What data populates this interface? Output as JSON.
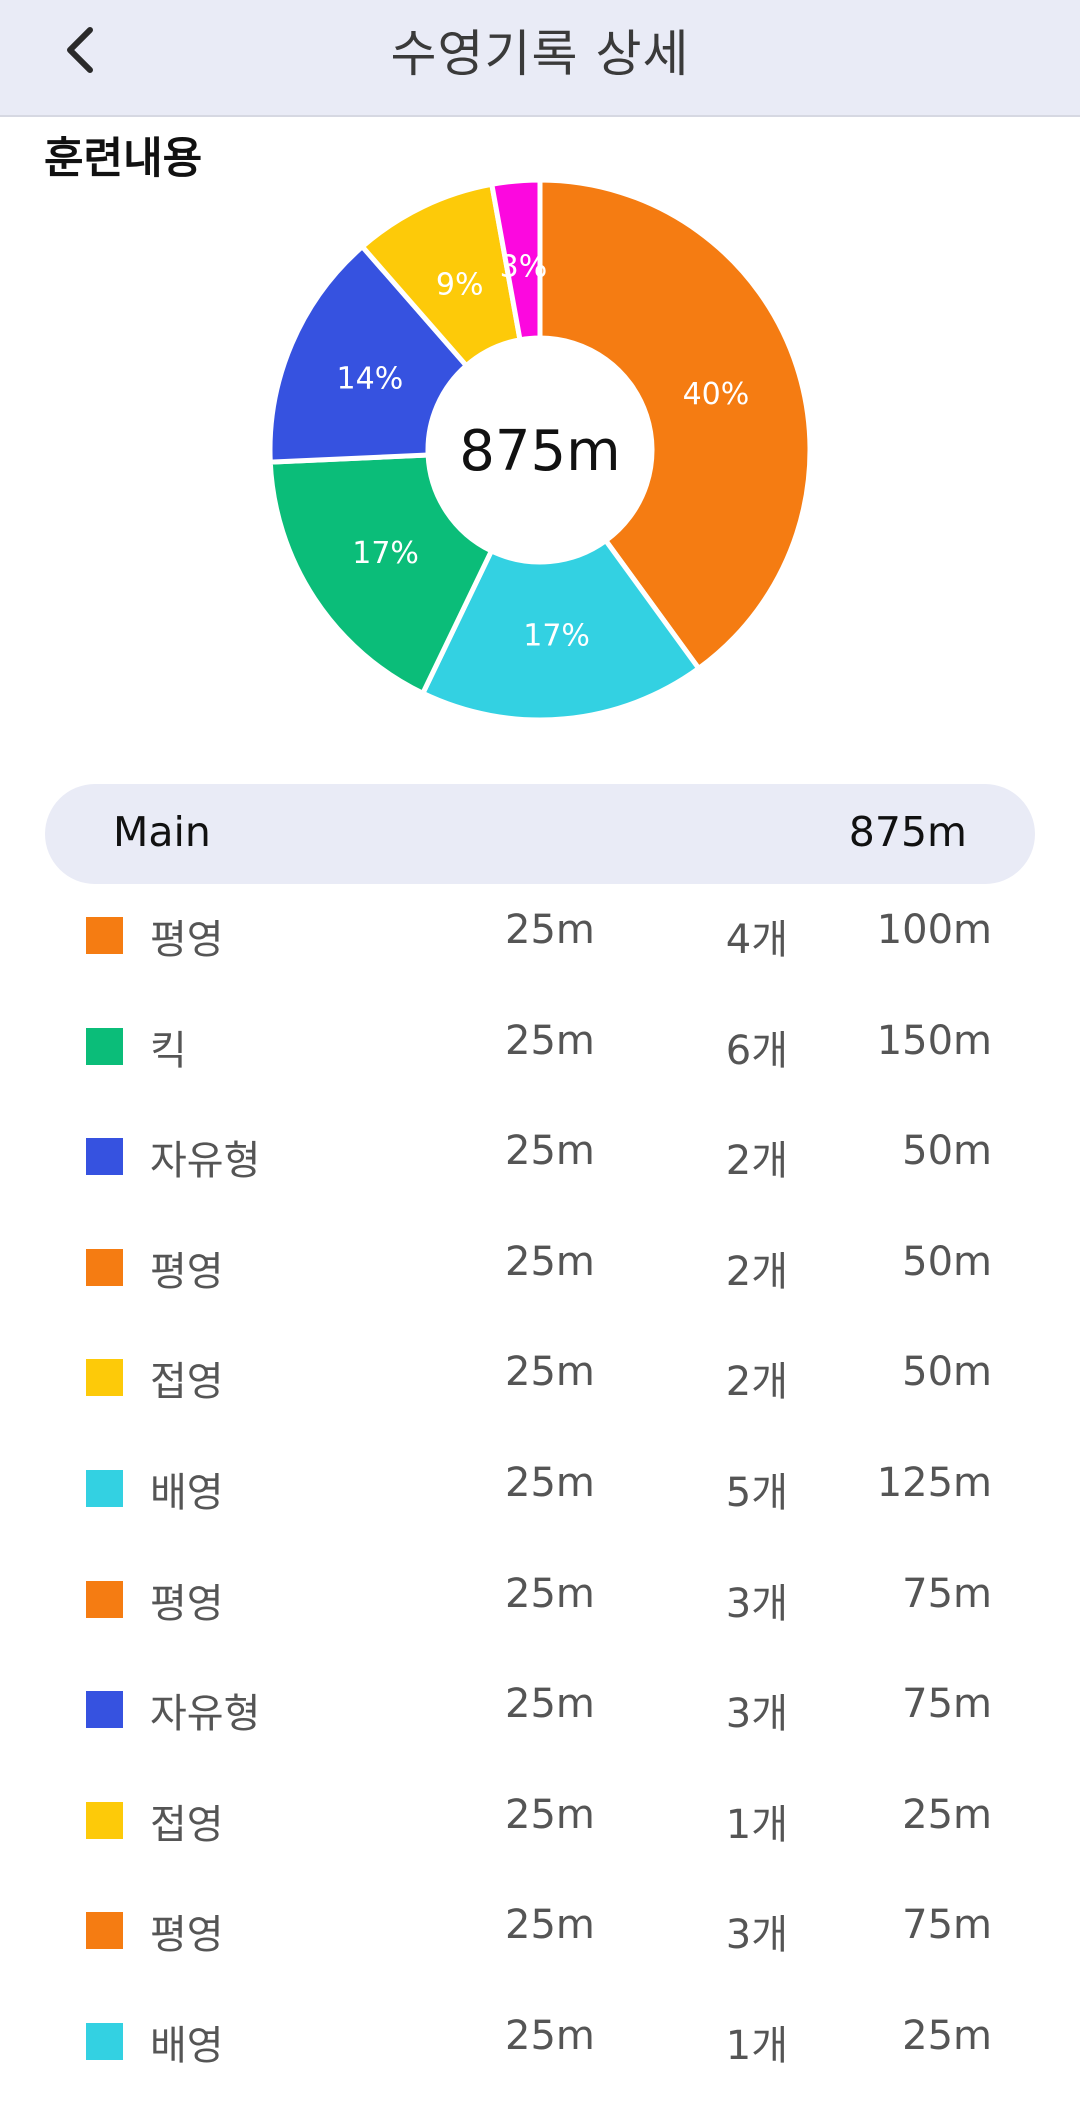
{
  "header": {
    "title": "수영기록 상세",
    "back_icon": "chevron-left-icon"
  },
  "section": {
    "title": "훈련내용"
  },
  "chart_data": {
    "type": "pie",
    "center_label": "875m",
    "slices": [
      {
        "label": "40%",
        "value": 350,
        "color": "#f57c12"
      },
      {
        "label": "17%",
        "value": 150,
        "color": "#33d1e2"
      },
      {
        "label": "17%",
        "value": 150,
        "color": "#0bbd79"
      },
      {
        "label": "14%",
        "value": 125,
        "color": "#3652e0"
      },
      {
        "label": "9%",
        "value": 75,
        "color": "#fdca09"
      },
      {
        "label": "3%",
        "value": 25,
        "color": "#fc08df"
      }
    ]
  },
  "main": {
    "label": "Main",
    "total": "875m"
  },
  "rows": [
    {
      "stroke": "평영",
      "color": "#f57c12",
      "length": "25m",
      "count": "4개",
      "total": "100m"
    },
    {
      "stroke": "킥",
      "color": "#0bbd79",
      "length": "25m",
      "count": "6개",
      "total": "150m"
    },
    {
      "stroke": "자유형",
      "color": "#3652e0",
      "length": "25m",
      "count": "2개",
      "total": "50m"
    },
    {
      "stroke": "평영",
      "color": "#f57c12",
      "length": "25m",
      "count": "2개",
      "total": "50m"
    },
    {
      "stroke": "접영",
      "color": "#fdca09",
      "length": "25m",
      "count": "2개",
      "total": "50m"
    },
    {
      "stroke": "배영",
      "color": "#33d1e2",
      "length": "25m",
      "count": "5개",
      "total": "125m"
    },
    {
      "stroke": "평영",
      "color": "#f57c12",
      "length": "25m",
      "count": "3개",
      "total": "75m"
    },
    {
      "stroke": "자유형",
      "color": "#3652e0",
      "length": "25m",
      "count": "3개",
      "total": "75m"
    },
    {
      "stroke": "접영",
      "color": "#fdca09",
      "length": "25m",
      "count": "1개",
      "total": "25m"
    },
    {
      "stroke": "평영",
      "color": "#f57c12",
      "length": "25m",
      "count": "3개",
      "total": "75m"
    },
    {
      "stroke": "배영",
      "color": "#33d1e2",
      "length": "25m",
      "count": "1개",
      "total": "25m"
    }
  ]
}
